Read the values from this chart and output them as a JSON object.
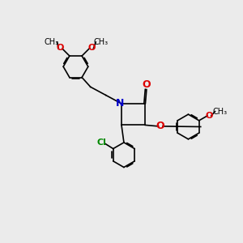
{
  "bg_color": "#ebebeb",
  "bond_color": "#000000",
  "n_color": "#0000cc",
  "o_color": "#dd0000",
  "cl_color": "#008800",
  "line_width": 1.2,
  "dbo": 0.055,
  "figsize": [
    3.0,
    3.0
  ],
  "dpi": 100,
  "xlim": [
    0,
    10
  ],
  "ylim": [
    0,
    10
  ]
}
